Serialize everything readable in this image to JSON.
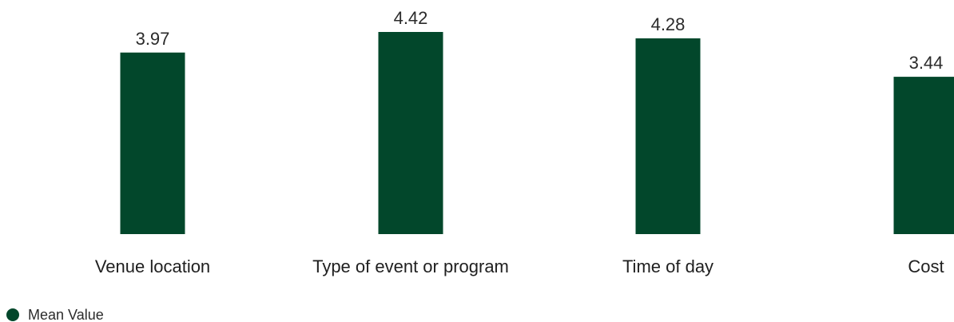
{
  "chart_data": {
    "type": "bar",
    "categories": [
      "Venue location",
      "Type of event or program",
      "Time of day",
      "Cost"
    ],
    "series": [
      {
        "name": "Mean Value",
        "values": [
          3.97,
          4.42,
          4.28,
          3.44
        ]
      }
    ],
    "data_labels": [
      "3.97",
      "4.42",
      "4.28",
      "3.44"
    ],
    "title": "",
    "xlabel": "",
    "ylabel": "",
    "ylim": [
      0,
      5
    ],
    "grid": false,
    "legend": "bottom-left"
  },
  "colors": {
    "bar": "#02472b"
  },
  "legend": {
    "label": "Mean Value",
    "icon": "circle-marker-icon"
  }
}
